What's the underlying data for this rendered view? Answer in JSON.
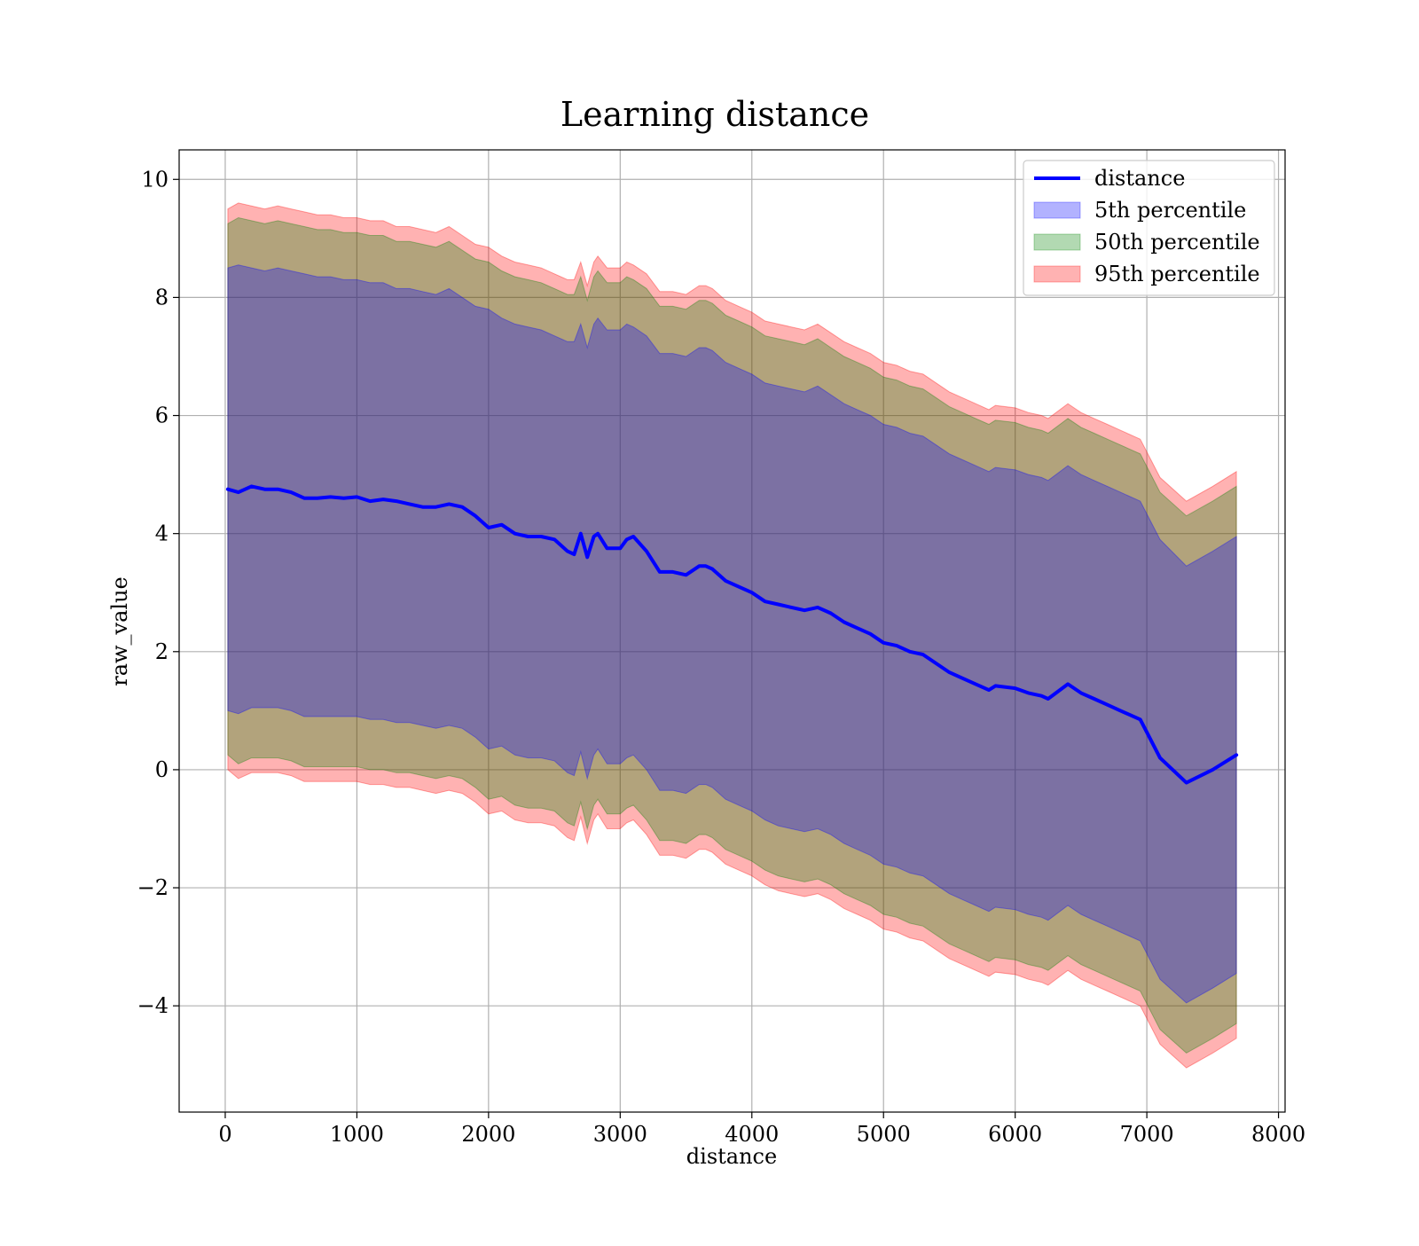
{
  "chart_data": {
    "type": "area",
    "title": "Learning distance",
    "xlabel": "distance",
    "ylabel": "raw_value",
    "xlim": [
      -350,
      8050
    ],
    "ylim": [
      -5.8,
      10.5
    ],
    "x_ticks": [
      0,
      1000,
      2000,
      3000,
      4000,
      5000,
      6000,
      7000,
      8000
    ],
    "x_tick_labels": [
      "0",
      "1000",
      "2000",
      "3000",
      "4000",
      "5000",
      "6000",
      "7000",
      "8000"
    ],
    "y_ticks": [
      -4,
      -2,
      0,
      2,
      4,
      6,
      8,
      10
    ],
    "y_tick_labels": [
      "−4",
      "−2",
      "0",
      "2",
      "4",
      "6",
      "8",
      "10"
    ],
    "grid": true,
    "legend_position": "top-right",
    "colors": {
      "line": "#0000ff",
      "band_5": "#0000ff",
      "band_50": "#008000",
      "band_95": "#ff0000",
      "grid": "#b0b0b0",
      "axes": "#000000"
    },
    "x": [
      20,
      100,
      200,
      300,
      400,
      500,
      600,
      700,
      800,
      900,
      1000,
      1100,
      1200,
      1300,
      1400,
      1500,
      1600,
      1700,
      1800,
      1900,
      2000,
      2100,
      2200,
      2300,
      2400,
      2500,
      2600,
      2650,
      2700,
      2750,
      2800,
      2830,
      2900,
      3000,
      3050,
      3100,
      3200,
      3300,
      3400,
      3500,
      3600,
      3650,
      3700,
      3800,
      3900,
      4000,
      4100,
      4200,
      4300,
      4400,
      4500,
      4600,
      4700,
      4800,
      4900,
      5000,
      5100,
      5200,
      5300,
      5400,
      5500,
      5600,
      5700,
      5800,
      5850,
      6000,
      6100,
      6200,
      6250,
      6400,
      6500,
      6600,
      6700,
      6800,
      6950,
      7100,
      7300,
      7500,
      7680
    ],
    "series": [
      {
        "name": "distance",
        "kind": "line",
        "values": [
          4.75,
          4.7,
          4.8,
          4.75,
          4.75,
          4.7,
          4.6,
          4.6,
          4.62,
          4.6,
          4.62,
          4.55,
          4.58,
          4.55,
          4.5,
          4.45,
          4.45,
          4.5,
          4.45,
          4.3,
          4.1,
          4.15,
          4.0,
          3.95,
          3.95,
          3.9,
          3.7,
          3.65,
          4.0,
          3.6,
          3.95,
          4.0,
          3.75,
          3.75,
          3.9,
          3.95,
          3.7,
          3.35,
          3.35,
          3.3,
          3.45,
          3.45,
          3.4,
          3.2,
          3.1,
          3.0,
          2.85,
          2.8,
          2.75,
          2.7,
          2.75,
          2.65,
          2.5,
          2.4,
          2.3,
          2.15,
          2.1,
          2.0,
          1.95,
          1.8,
          1.65,
          1.55,
          1.45,
          1.35,
          1.42,
          1.38,
          1.3,
          1.25,
          1.2,
          1.45,
          1.3,
          1.2,
          1.1,
          1.0,
          0.85,
          0.2,
          -0.22,
          0.0,
          0.25
        ]
      }
    ],
    "bands": [
      {
        "name": "95th percentile",
        "upper": [
          9.5,
          9.6,
          9.55,
          9.5,
          9.55,
          9.5,
          9.45,
          9.4,
          9.4,
          9.35,
          9.35,
          9.3,
          9.3,
          9.2,
          9.2,
          9.15,
          9.1,
          9.2,
          9.05,
          8.9,
          8.85,
          8.7,
          8.6,
          8.55,
          8.5,
          8.4,
          8.3,
          8.3,
          8.6,
          8.2,
          8.6,
          8.7,
          8.5,
          8.5,
          8.6,
          8.55,
          8.4,
          8.1,
          8.1,
          8.05,
          8.2,
          8.2,
          8.15,
          7.95,
          7.85,
          7.75,
          7.6,
          7.55,
          7.5,
          7.45,
          7.55,
          7.4,
          7.25,
          7.15,
          7.05,
          6.9,
          6.85,
          6.75,
          6.7,
          6.55,
          6.4,
          6.3,
          6.2,
          6.1,
          6.17,
          6.13,
          6.05,
          6.0,
          5.95,
          6.2,
          6.05,
          5.95,
          5.85,
          5.75,
          5.6,
          4.95,
          4.55,
          4.8,
          5.05
        ],
        "lower": [
          0.0,
          -0.15,
          -0.05,
          -0.05,
          -0.05,
          -0.1,
          -0.2,
          -0.2,
          -0.2,
          -0.2,
          -0.2,
          -0.25,
          -0.25,
          -0.3,
          -0.3,
          -0.35,
          -0.4,
          -0.35,
          -0.4,
          -0.55,
          -0.75,
          -0.7,
          -0.85,
          -0.9,
          -0.9,
          -0.95,
          -1.15,
          -1.2,
          -0.8,
          -1.25,
          -0.85,
          -0.75,
          -1.0,
          -1.0,
          -0.9,
          -0.85,
          -1.1,
          -1.45,
          -1.45,
          -1.5,
          -1.35,
          -1.35,
          -1.4,
          -1.6,
          -1.7,
          -1.8,
          -1.95,
          -2.05,
          -2.1,
          -2.15,
          -2.1,
          -2.2,
          -2.35,
          -2.45,
          -2.55,
          -2.7,
          -2.75,
          -2.85,
          -2.9,
          -3.05,
          -3.2,
          -3.3,
          -3.4,
          -3.5,
          -3.43,
          -3.47,
          -3.55,
          -3.6,
          -3.65,
          -3.4,
          -3.55,
          -3.65,
          -3.75,
          -3.85,
          -4.0,
          -4.65,
          -5.05,
          -4.8,
          -4.55
        ]
      },
      {
        "name": "50th percentile",
        "upper": [
          9.25,
          9.35,
          9.3,
          9.25,
          9.3,
          9.25,
          9.2,
          9.15,
          9.15,
          9.1,
          9.1,
          9.05,
          9.05,
          8.95,
          8.95,
          8.9,
          8.85,
          8.95,
          8.8,
          8.65,
          8.6,
          8.45,
          8.35,
          8.3,
          8.25,
          8.15,
          8.05,
          8.05,
          8.35,
          7.95,
          8.35,
          8.45,
          8.25,
          8.25,
          8.35,
          8.3,
          8.15,
          7.85,
          7.85,
          7.8,
          7.95,
          7.95,
          7.9,
          7.7,
          7.6,
          7.5,
          7.35,
          7.3,
          7.25,
          7.2,
          7.3,
          7.15,
          7.0,
          6.9,
          6.8,
          6.65,
          6.6,
          6.5,
          6.45,
          6.3,
          6.15,
          6.05,
          5.95,
          5.85,
          5.92,
          5.88,
          5.8,
          5.75,
          5.7,
          5.95,
          5.8,
          5.7,
          5.6,
          5.5,
          5.35,
          4.7,
          4.3,
          4.55,
          4.8
        ],
        "lower": [
          0.25,
          0.1,
          0.2,
          0.2,
          0.2,
          0.15,
          0.05,
          0.05,
          0.05,
          0.05,
          0.05,
          0.0,
          0.0,
          -0.05,
          -0.05,
          -0.1,
          -0.15,
          -0.1,
          -0.15,
          -0.3,
          -0.5,
          -0.45,
          -0.6,
          -0.65,
          -0.65,
          -0.7,
          -0.9,
          -0.95,
          -0.55,
          -1.0,
          -0.6,
          -0.5,
          -0.75,
          -0.75,
          -0.65,
          -0.6,
          -0.85,
          -1.2,
          -1.2,
          -1.25,
          -1.1,
          -1.1,
          -1.15,
          -1.35,
          -1.45,
          -1.55,
          -1.7,
          -1.8,
          -1.85,
          -1.9,
          -1.85,
          -1.95,
          -2.1,
          -2.2,
          -2.3,
          -2.45,
          -2.5,
          -2.6,
          -2.65,
          -2.8,
          -2.95,
          -3.05,
          -3.15,
          -3.25,
          -3.18,
          -3.22,
          -3.3,
          -3.35,
          -3.4,
          -3.15,
          -3.3,
          -3.4,
          -3.5,
          -3.6,
          -3.75,
          -4.4,
          -4.8,
          -4.55,
          -4.3
        ]
      },
      {
        "name": "5th percentile",
        "upper": [
          8.5,
          8.55,
          8.5,
          8.45,
          8.5,
          8.45,
          8.4,
          8.35,
          8.35,
          8.3,
          8.3,
          8.25,
          8.25,
          8.15,
          8.15,
          8.1,
          8.05,
          8.15,
          8.0,
          7.85,
          7.8,
          7.65,
          7.55,
          7.5,
          7.45,
          7.35,
          7.25,
          7.25,
          7.55,
          7.15,
          7.55,
          7.65,
          7.45,
          7.45,
          7.55,
          7.5,
          7.35,
          7.05,
          7.05,
          7.0,
          7.15,
          7.15,
          7.1,
          6.9,
          6.8,
          6.7,
          6.55,
          6.5,
          6.45,
          6.4,
          6.5,
          6.35,
          6.2,
          6.1,
          6.0,
          5.85,
          5.8,
          5.7,
          5.65,
          5.5,
          5.35,
          5.25,
          5.15,
          5.05,
          5.12,
          5.08,
          5.0,
          4.95,
          4.9,
          5.15,
          5.0,
          4.9,
          4.8,
          4.7,
          4.55,
          3.9,
          3.45,
          3.7,
          3.95
        ],
        "lower": [
          1.0,
          0.95,
          1.05,
          1.05,
          1.05,
          1.0,
          0.9,
          0.9,
          0.9,
          0.9,
          0.9,
          0.85,
          0.85,
          0.8,
          0.8,
          0.75,
          0.7,
          0.75,
          0.7,
          0.55,
          0.35,
          0.4,
          0.25,
          0.2,
          0.2,
          0.15,
          -0.05,
          -0.1,
          0.3,
          -0.15,
          0.25,
          0.35,
          0.1,
          0.1,
          0.2,
          0.25,
          0.0,
          -0.35,
          -0.35,
          -0.4,
          -0.25,
          -0.25,
          -0.3,
          -0.5,
          -0.6,
          -0.7,
          -0.85,
          -0.95,
          -1.0,
          -1.05,
          -1.0,
          -1.1,
          -1.25,
          -1.35,
          -1.45,
          -1.6,
          -1.65,
          -1.75,
          -1.8,
          -1.95,
          -2.1,
          -2.2,
          -2.3,
          -2.4,
          -2.33,
          -2.37,
          -2.45,
          -2.5,
          -2.55,
          -2.3,
          -2.45,
          -2.55,
          -2.65,
          -2.75,
          -2.9,
          -3.55,
          -3.95,
          -3.7,
          -3.45
        ]
      }
    ],
    "legend": [
      {
        "label": "distance",
        "kind": "line",
        "color": "#0000ff"
      },
      {
        "label": "5th percentile",
        "kind": "patch",
        "color": "#0000ff"
      },
      {
        "label": "50th percentile",
        "kind": "patch",
        "color": "#008000"
      },
      {
        "label": "95th percentile",
        "kind": "patch",
        "color": "#ff0000"
      }
    ]
  }
}
